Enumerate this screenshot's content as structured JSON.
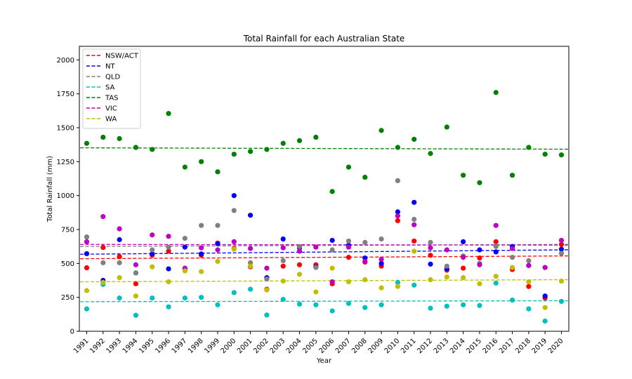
{
  "chart_data": {
    "type": "scatter",
    "title": "Total Rainfall for each Australian State",
    "xlabel": "Year",
    "ylabel": "Total Rainfall (mm)",
    "ylim": [
      0,
      2100
    ],
    "yticks": [
      0,
      250,
      500,
      750,
      1000,
      1250,
      1500,
      1750,
      2000
    ],
    "x": [
      1991,
      1992,
      1993,
      1994,
      1995,
      1996,
      1997,
      1998,
      1999,
      2000,
      2001,
      2002,
      2003,
      2004,
      2005,
      2006,
      2007,
      2008,
      2009,
      2010,
      2011,
      2012,
      2013,
      2014,
      2015,
      2016,
      2017,
      2018,
      2019,
      2020
    ],
    "legend_position": "top-left",
    "trend_lines": "dashed linear fit per series",
    "series": [
      {
        "name": "NSW/ACT",
        "color": "#ff0000",
        "trend": [
          535,
          555
        ],
        "values": [
          468,
          618,
          550,
          350,
          560,
          590,
          460,
          560,
          650,
          610,
          475,
          310,
          480,
          490,
          490,
          350,
          545,
          510,
          480,
          815,
          665,
          560,
          450,
          465,
          540,
          660,
          455,
          330,
          245,
          640
        ]
      },
      {
        "name": "NT",
        "color": "#0000ff",
        "trend": [
          568,
          600
        ],
        "values": [
          572,
          375,
          675,
          430,
          570,
          460,
          620,
          570,
          645,
          1000,
          855,
          395,
          680,
          615,
          475,
          670,
          635,
          540,
          500,
          880,
          950,
          495,
          460,
          660,
          600,
          585,
          625,
          485,
          260,
          605
        ]
      },
      {
        "name": "QLD",
        "color": "#808080",
        "trend": [
          625,
          640
        ],
        "values": [
          695,
          505,
          505,
          430,
          600,
          620,
          685,
          780,
          780,
          890,
          505,
          385,
          520,
          625,
          470,
          600,
          665,
          655,
          680,
          1110,
          825,
          655,
          480,
          555,
          500,
          625,
          545,
          520,
          470,
          575
        ]
      },
      {
        "name": "SA",
        "color": "#00bfbf",
        "trend": [
          218,
          225
        ],
        "values": [
          165,
          345,
          245,
          118,
          245,
          180,
          245,
          250,
          195,
          285,
          310,
          120,
          235,
          200,
          195,
          150,
          205,
          175,
          195,
          360,
          340,
          170,
          185,
          195,
          190,
          355,
          230,
          165,
          75,
          220
        ]
      },
      {
        "name": "TAS",
        "color": "#008000",
        "trend": [
          1352,
          1342
        ],
        "values": [
          1385,
          1430,
          1420,
          1355,
          1340,
          1605,
          1210,
          1250,
          1175,
          1305,
          1325,
          1340,
          1385,
          1405,
          1430,
          1030,
          1210,
          1135,
          1480,
          1355,
          1415,
          1310,
          1505,
          1150,
          1095,
          1760,
          1150,
          1355,
          1305,
          1300
        ]
      },
      {
        "name": "VIC",
        "color": "#bf00bf",
        "trend": [
          640,
          635
        ],
        "values": [
          660,
          845,
          755,
          490,
          710,
          700,
          465,
          615,
          600,
          660,
          610,
          465,
          615,
          590,
          620,
          365,
          620,
          515,
          530,
          850,
          785,
          615,
          600,
          545,
          490,
          780,
          610,
          485,
          470,
          670
        ]
      },
      {
        "name": "WA",
        "color": "#bfbf00",
        "trend": [
          365,
          380
        ],
        "values": [
          300,
          360,
          395,
          260,
          475,
          365,
          445,
          440,
          515,
          605,
          480,
          305,
          370,
          420,
          290,
          465,
          365,
          380,
          320,
          330,
          590,
          380,
          400,
          395,
          350,
          405,
          470,
          365,
          175,
          370
        ]
      }
    ]
  }
}
